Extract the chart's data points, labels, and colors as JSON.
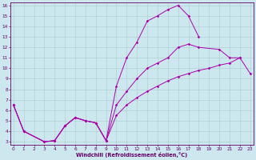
{
  "xlabel": "Windchill (Refroidissement éolien,°C)",
  "bg_color": "#cce8ee",
  "grid_color": "#aacccc",
  "line_color": "#aa00aa",
  "xmin": 0,
  "xmax": 23,
  "ymin": 3,
  "ymax": 16,
  "line1_x": [
    0,
    1,
    3,
    4,
    5,
    6,
    7,
    8,
    9,
    10,
    11,
    12,
    13,
    14,
    15,
    16,
    17,
    18,
    19,
    20,
    21,
    22,
    23
  ],
  "line1_y": [
    6.5,
    4.0,
    3.0,
    3.1,
    4.5,
    5.3,
    5.0,
    4.8,
    3.1,
    8.3,
    11.0,
    12.5,
    14.5,
    15.0,
    15.6,
    16.0,
    15.0,
    13.0,
    null,
    null,
    null,
    null,
    null
  ],
  "line2_x": [
    0,
    1,
    3,
    4,
    5,
    6,
    7,
    8,
    9,
    10,
    11,
    12,
    13,
    14,
    15,
    16,
    17,
    18,
    20,
    21,
    22
  ],
  "line2_y": [
    6.5,
    4.0,
    3.0,
    3.1,
    4.5,
    5.3,
    5.0,
    4.8,
    3.1,
    6.5,
    7.8,
    9.0,
    10.0,
    10.5,
    11.0,
    12.0,
    12.3,
    12.0,
    11.8,
    11.0,
    11.0
  ],
  "line3_x": [
    0,
    1,
    3,
    4,
    5,
    6,
    7,
    8,
    9,
    10,
    11,
    12,
    13,
    14,
    15,
    16,
    17,
    18,
    19,
    20,
    21,
    22,
    23
  ],
  "line3_y": [
    6.5,
    4.0,
    3.0,
    3.1,
    4.5,
    5.3,
    5.0,
    4.8,
    3.1,
    5.5,
    6.5,
    7.2,
    7.8,
    8.3,
    8.8,
    9.2,
    9.5,
    9.8,
    10.0,
    10.3,
    10.5,
    11.0,
    9.5
  ]
}
